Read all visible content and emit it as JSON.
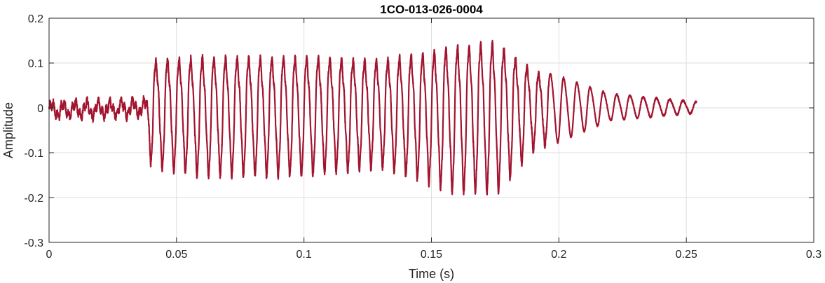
{
  "chart_data": {
    "type": "line",
    "title": "1CO-013-026-0004",
    "xlabel": "Time (s)",
    "ylabel": "Amplitude",
    "xlim": [
      0,
      0.3
    ],
    "ylim": [
      -0.3,
      0.2
    ],
    "x_ticks": [
      0,
      0.05,
      0.1,
      0.15,
      0.2,
      0.25,
      0.3
    ],
    "x_tick_labels": [
      "0",
      "0.05",
      "0.1",
      "0.15",
      "0.2",
      "0.25",
      "0.3"
    ],
    "y_ticks": [
      -0.3,
      -0.2,
      -0.1,
      0,
      0.1,
      0.2
    ],
    "y_tick_labels": [
      "-0.3",
      "-0.2",
      "-0.1",
      "0",
      "0.1",
      "0.2"
    ],
    "grid": true,
    "legend": "none",
    "series": [
      {
        "color": "#a2142f",
        "x": [
          0,
          0.038,
          0.04,
          0.06,
          0.1,
          0.13,
          0.16,
          0.176,
          0.19,
          0.2,
          0.22,
          0.254
        ],
        "upper_envelope": [
          0.015,
          0.02,
          0.13,
          0.14,
          0.14,
          0.13,
          0.17,
          0.18,
          0.1,
          0.08,
          0.035,
          0.015
        ],
        "lower_envelope": [
          -0.025,
          -0.02,
          -0.14,
          -0.16,
          -0.16,
          -0.14,
          -0.2,
          -0.2,
          -0.1,
          -0.08,
          -0.03,
          -0.012
        ],
        "segments": [
          {
            "x_start": 0,
            "x_end": 0.038,
            "period": 0.00455,
            "kind": "noisy-low"
          },
          {
            "x_start": 0.038,
            "x_end": 0.196,
            "period": 0.00455,
            "kind": "voiced-dense"
          },
          {
            "x_start": 0.196,
            "x_end": 0.254,
            "period": 0.0052,
            "kind": "decay"
          }
        ]
      }
    ]
  }
}
